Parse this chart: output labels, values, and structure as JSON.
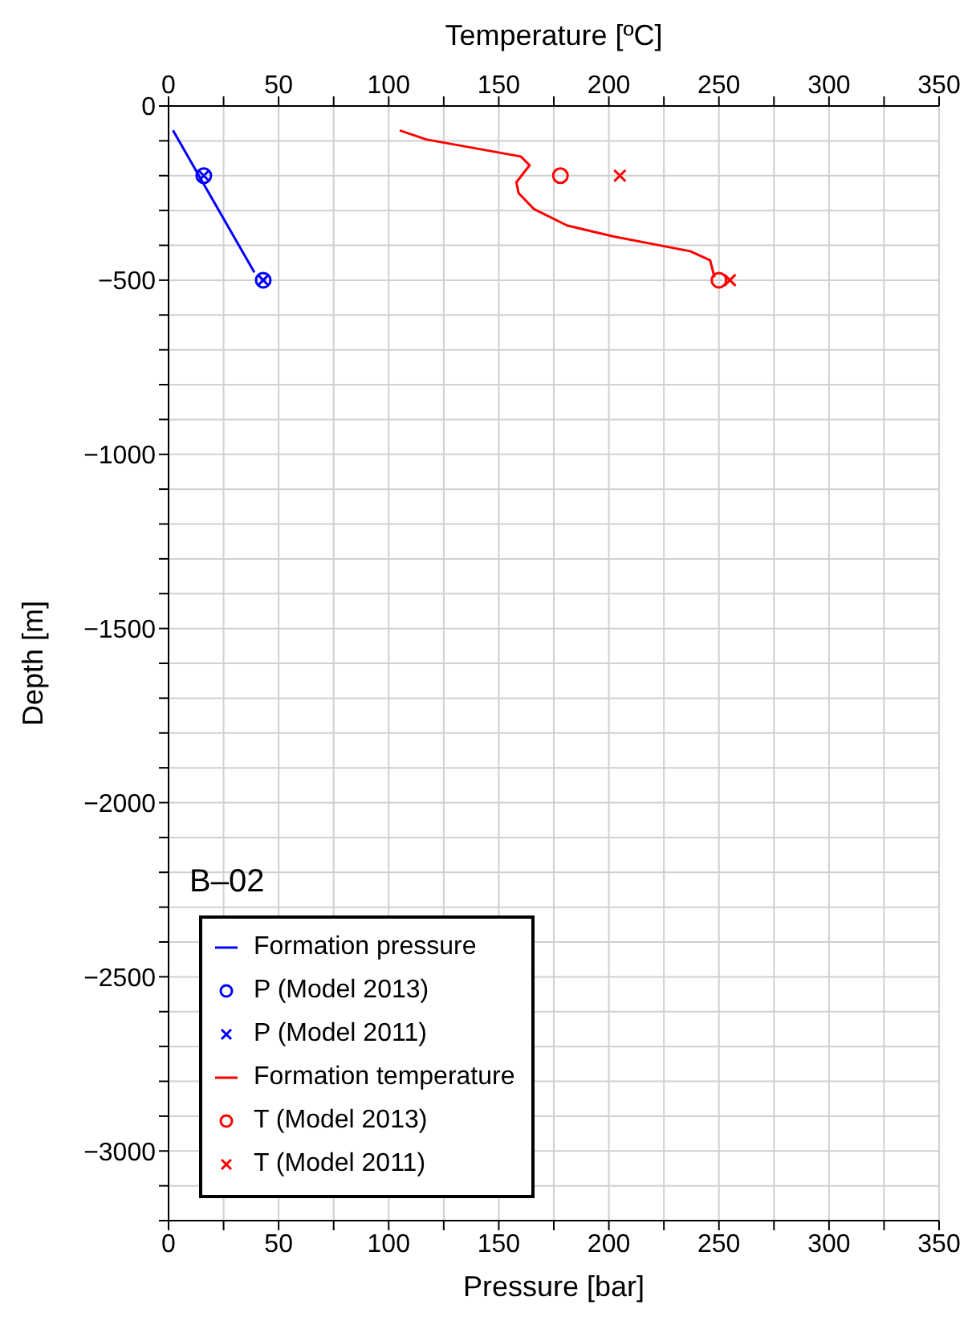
{
  "chart_data": {
    "type": "line",
    "xlabel": "Pressure [bar]",
    "x2label": "Temperature [ºC]",
    "ylabel": "Depth [m]",
    "annotations": [
      "B–02"
    ],
    "xlim": [
      0,
      350
    ],
    "x2lim": [
      0,
      350
    ],
    "ylim": [
      -3200,
      0
    ],
    "xticks": [
      0,
      {
        "value": 25,
        "label": null
      },
      50,
      {
        "value": 75,
        "label": null
      },
      100,
      {
        "value": 125,
        "label": null
      },
      150,
      {
        "value": 175,
        "label": null
      },
      200,
      {
        "value": 225,
        "label": null
      },
      250,
      {
        "value": 275,
        "label": null
      },
      300,
      {
        "value": 325,
        "label": null
      },
      350
    ],
    "x2ticks": [
      0,
      {
        "value": 25,
        "label": null
      },
      50,
      {
        "value": 75,
        "label": null
      },
      100,
      {
        "value": 125,
        "label": null
      },
      150,
      {
        "value": 175,
        "label": null
      },
      200,
      {
        "value": 225,
        "label": null
      },
      250,
      {
        "value": 275,
        "label": null
      },
      300,
      {
        "value": 325,
        "label": null
      },
      350
    ],
    "yticks": [
      0,
      {
        "value": -100,
        "label": null
      },
      {
        "value": -200,
        "label": null
      },
      {
        "value": -300,
        "label": null
      },
      {
        "value": -400,
        "label": null
      },
      {
        "value": -500,
        "label": "−500"
      },
      {
        "value": -600,
        "label": null
      },
      {
        "value": -700,
        "label": null
      },
      {
        "value": -800,
        "label": null
      },
      {
        "value": -900,
        "label": null
      },
      {
        "value": -1000,
        "label": "−1000"
      },
      {
        "value": -1100,
        "label": null
      },
      {
        "value": -1200,
        "label": null
      },
      {
        "value": -1300,
        "label": null
      },
      {
        "value": -1400,
        "label": null
      },
      {
        "value": -1500,
        "label": "−1500"
      },
      {
        "value": -1600,
        "label": null
      },
      {
        "value": -1700,
        "label": null
      },
      {
        "value": -1800,
        "label": null
      },
      {
        "value": -1900,
        "label": null
      },
      {
        "value": -2000,
        "label": "−2000"
      },
      {
        "value": -2100,
        "label": null
      },
      {
        "value": -2200,
        "label": null
      },
      {
        "value": -2300,
        "label": null
      },
      {
        "value": -2400,
        "label": null
      },
      {
        "value": -2500,
        "label": "−2500"
      },
      {
        "value": -2600,
        "label": null
      },
      {
        "value": -2700,
        "label": null
      },
      {
        "value": -2800,
        "label": null
      },
      {
        "value": -2900,
        "label": null
      },
      {
        "value": -3000,
        "label": "−3000"
      },
      {
        "value": -3100,
        "label": null
      },
      {
        "value": -3200,
        "label": null
      }
    ],
    "grid": true,
    "legend": "bottom left",
    "series": [
      {
        "name": "Formation pressure",
        "type": "line",
        "color": "#0000ff",
        "marker": "none",
        "x": [
          2,
          39
        ],
        "values": [
          -70,
          -478
        ]
      },
      {
        "name": "P (Model 2013)",
        "type": "scatter",
        "color": "#0000ff",
        "marker": "circle",
        "x": [
          16,
          43
        ],
        "values": [
          -200,
          -500
        ]
      },
      {
        "name": "P (Model 2011)",
        "type": "scatter",
        "color": "#0000ff",
        "marker": "cross",
        "x": [
          16,
          43
        ],
        "values": [
          -200,
          -500
        ]
      },
      {
        "name": "Formation temperature",
        "type": "line",
        "axis": "x2",
        "color": "#ff0000",
        "marker": "none",
        "x": [
          105,
          117,
          160,
          164,
          158,
          159,
          166,
          181,
          201,
          237,
          246,
          248
        ],
        "values": [
          -70,
          -96,
          -145,
          -170,
          -219,
          -250,
          -296,
          -343,
          -373,
          -417,
          -443,
          -492
        ]
      },
      {
        "name": "T (Model 2013)",
        "type": "scatter",
        "axis": "x2",
        "color": "#ff0000",
        "marker": "circle",
        "x": [
          178,
          250
        ],
        "values": [
          -200,
          -500
        ]
      },
      {
        "name": "T (Model 2011)",
        "type": "scatter",
        "axis": "x2",
        "color": "#ff0000",
        "marker": "cross",
        "x": [
          205,
          255
        ],
        "values": [
          -200,
          -500
        ]
      }
    ]
  }
}
